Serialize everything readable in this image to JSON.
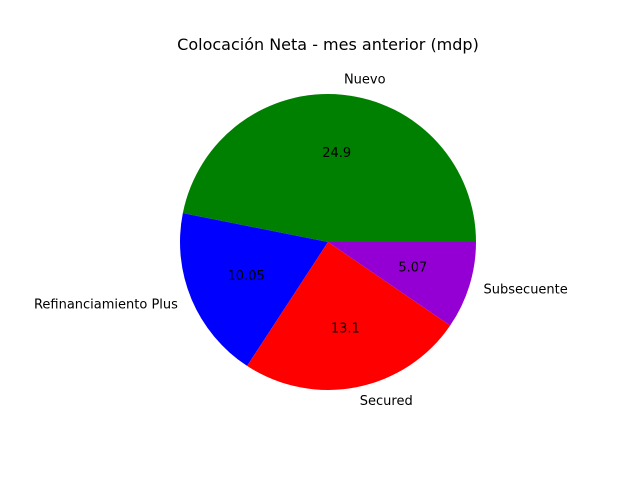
{
  "chart_data": {
    "type": "pie",
    "title": "Colocación Neta - mes anterior (mdp)",
    "labels": [
      "Nuevo",
      "Refinanciamiento Plus",
      "Secured",
      "Subsecuente"
    ],
    "values": [
      24.9,
      10.05,
      13.1,
      5.07
    ],
    "value_labels": [
      "24.9",
      "10.05",
      "13.1",
      "5.07"
    ],
    "colors": [
      "#008000",
      "#0000ff",
      "#ff0000",
      "#9400d3"
    ],
    "start_angle_deg": 0,
    "direction": "counterclockwise"
  }
}
